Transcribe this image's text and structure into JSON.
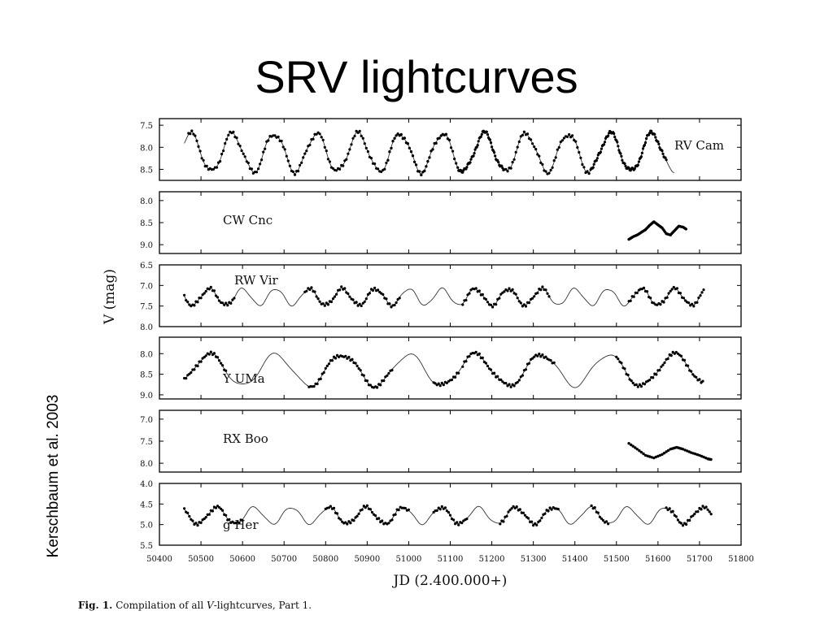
{
  "slide": {
    "title": "SRV lightcurves",
    "side_credit": "Kerschbaum et al. 2003"
  },
  "caption": {
    "label": "Fig. 1.",
    "text_before": "Compilation of all ",
    "text_var": "V",
    "text_after": "-lightcurves, Part 1."
  },
  "chart_data": {
    "type": "scatter",
    "xlabel": "JD (2.400.000+)",
    "ylabel": "V (mag)",
    "xlim": [
      50400,
      51800
    ],
    "x_ticks": [
      "50400",
      "50500",
      "50600",
      "50700",
      "50800",
      "50900",
      "51000",
      "51100",
      "51200",
      "51300",
      "51400",
      "51500",
      "51600",
      "51700",
      "51800"
    ],
    "y_inverted": true,
    "panels": [
      {
        "name": "RV Cam",
        "ylim": [
          7.35,
          8.75
        ],
        "yticks": [
          "7.5",
          "8.0",
          "8.5"
        ],
        "label_pos": "right",
        "model": {
          "mean": 8.12,
          "amp": 0.43,
          "period": 101,
          "phase": 50500,
          "range": [
            50460,
            51640
          ]
        },
        "obs": [
          [
            50470,
            51620
          ],
          [
            50950,
            51100
          ],
          [
            51120,
            51230
          ],
          [
            51440,
            51620
          ]
        ]
      },
      {
        "name": "CW Cnc",
        "ylim": [
          7.8,
          9.2
        ],
        "yticks": [
          "8.0",
          "8.5",
          "9.0"
        ],
        "label_pos": "left",
        "model": null,
        "points": [
          [
            51530,
            8.88
          ],
          [
            51540,
            8.82
          ],
          [
            51550,
            8.78
          ],
          [
            51560,
            8.72
          ],
          [
            51570,
            8.66
          ],
          [
            51580,
            8.56
          ],
          [
            51590,
            8.48
          ],
          [
            51600,
            8.55
          ],
          [
            51610,
            8.62
          ],
          [
            51620,
            8.75
          ],
          [
            51630,
            8.78
          ],
          [
            51640,
            8.68
          ],
          [
            51650,
            8.58
          ],
          [
            51660,
            8.6
          ],
          [
            51670,
            8.66
          ]
        ]
      },
      {
        "name": "RW Vir",
        "ylim": [
          6.5,
          8.0
        ],
        "yticks": [
          "6.5",
          "7.0",
          "7.5",
          "8.0"
        ],
        "label_pos": "left",
        "model": {
          "mean": 7.28,
          "amp": 0.2,
          "period": 80,
          "phase": 50540,
          "range": [
            50460,
            51710
          ]
        },
        "obs": [
          [
            50460,
            50580
          ],
          [
            50750,
            50980
          ],
          [
            51130,
            51340
          ],
          [
            51530,
            51710
          ]
        ]
      },
      {
        "name": "Y UMa",
        "ylim": [
          7.6,
          9.1
        ],
        "yticks": [
          "8.0",
          "8.5",
          "9.0"
        ],
        "label_pos": "left",
        "model": {
          "mean": 8.4,
          "amp": 0.38,
          "period": 160,
          "phase": 50560,
          "range": [
            50460,
            51710
          ]
        },
        "obs": [
          [
            50460,
            50560
          ],
          [
            50760,
            50960
          ],
          [
            51060,
            51120
          ],
          [
            51130,
            51350
          ],
          [
            51500,
            51710
          ]
        ]
      },
      {
        "name": "RX Boo",
        "ylim": [
          6.8,
          8.2
        ],
        "yticks": [
          "7.0",
          "7.5",
          "8.0"
        ],
        "label_pos": "left",
        "model": null,
        "points": [
          [
            51530,
            7.55
          ],
          [
            51550,
            7.68
          ],
          [
            51570,
            7.82
          ],
          [
            51590,
            7.88
          ],
          [
            51610,
            7.8
          ],
          [
            51630,
            7.68
          ],
          [
            51645,
            7.64
          ],
          [
            51660,
            7.68
          ],
          [
            51680,
            7.76
          ],
          [
            51700,
            7.82
          ],
          [
            51720,
            7.9
          ],
          [
            51730,
            7.92
          ]
        ]
      },
      {
        "name": "g Her",
        "ylim": [
          4.0,
          5.5
        ],
        "yticks": [
          "4.0",
          "4.5",
          "5.0",
          "5.5"
        ],
        "label_pos": "left",
        "model": {
          "mean": 4.78,
          "amp": 0.2,
          "period": 90,
          "phase": 50560,
          "range": [
            50460,
            51730
          ]
        },
        "obs": [
          [
            50460,
            50600
          ],
          [
            50800,
            51000
          ],
          [
            51060,
            51140
          ],
          [
            51220,
            51360
          ],
          [
            51440,
            51480
          ],
          [
            51620,
            51730
          ]
        ]
      }
    ]
  }
}
